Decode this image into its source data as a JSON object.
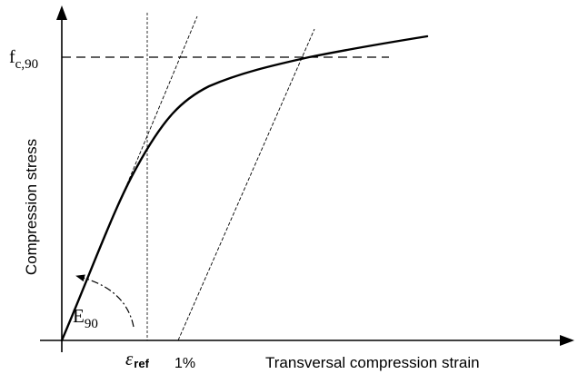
{
  "labels": {
    "y_axis_label": "Compression stress",
    "x_axis_label": "Transversal compression strain",
    "strength_base": "f",
    "strength_sub": "c,90",
    "modulus_base": "E",
    "modulus_sub": "90",
    "ref_strain_symbol": "ε",
    "ref_strain_sub": "ref",
    "offset_strain": "1%"
  },
  "colors": {
    "line": "#000000",
    "background": "#ffffff"
  }
}
